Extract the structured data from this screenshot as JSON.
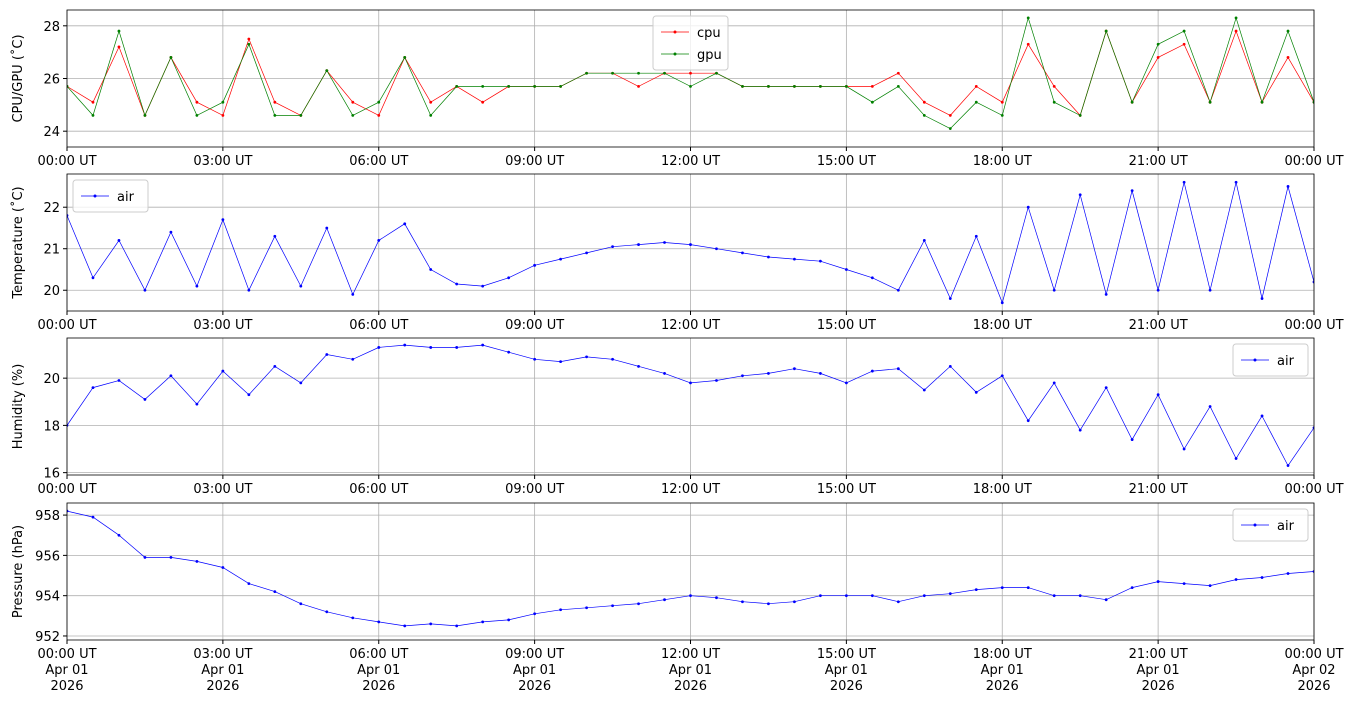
{
  "chart_data": [
    {
      "type": "line",
      "ylabel": "CPU/GPU (˚C)",
      "legend": "upper center",
      "grid": true,
      "x": [
        0,
        0.5,
        1,
        1.5,
        2,
        2.5,
        3,
        3.5,
        4,
        4.5,
        5,
        5.5,
        6,
        6.5,
        7,
        7.5,
        8,
        8.5,
        9,
        9.5,
        10,
        10.5,
        11,
        11.5,
        12,
        12.5,
        13,
        13.5,
        14,
        14.5,
        15,
        15.5,
        16,
        16.5,
        17,
        17.5,
        18,
        18.5,
        19,
        19.5,
        20,
        20.5,
        21,
        21.5,
        22,
        22.5,
        23,
        23.5,
        24
      ],
      "series": [
        {
          "name": "cpu",
          "color": "#ff0000",
          "values": [
            25.7,
            25.1,
            27.2,
            24.6,
            26.8,
            25.1,
            24.6,
            27.5,
            25.1,
            24.6,
            26.3,
            25.1,
            24.6,
            26.8,
            25.1,
            25.7,
            25.1,
            25.7,
            25.7,
            25.7,
            26.2,
            26.2,
            25.7,
            26.2,
            26.2,
            26.2,
            25.7,
            25.7,
            25.7,
            25.7,
            25.7,
            25.7,
            26.2,
            25.1,
            24.6,
            25.7,
            25.1,
            27.3,
            25.7,
            24.6,
            27.8,
            25.1,
            26.8,
            27.3,
            25.1,
            27.8,
            25.1,
            26.8,
            25.1
          ]
        },
        {
          "name": "gpu",
          "color": "#008000",
          "values": [
            25.7,
            24.6,
            27.8,
            24.6,
            26.8,
            24.6,
            25.1,
            27.3,
            24.6,
            24.6,
            26.3,
            24.6,
            25.1,
            26.8,
            24.6,
            25.7,
            25.7,
            25.7,
            25.7,
            25.7,
            26.2,
            26.2,
            26.2,
            26.2,
            25.7,
            26.2,
            25.7,
            25.7,
            25.7,
            25.7,
            25.7,
            25.1,
            25.7,
            24.6,
            24.1,
            25.1,
            24.6,
            28.3,
            25.1,
            24.6,
            27.8,
            25.1,
            27.3,
            27.8,
            25.1,
            28.3,
            25.1,
            27.8,
            25.1
          ]
        }
      ],
      "xlim": [
        0,
        24
      ],
      "ylim": [
        23.4,
        28.6
      ],
      "yticks": [
        24,
        26,
        28
      ],
      "xticks": [
        {
          "value": 0,
          "label": "00:00 UT"
        },
        {
          "value": 3,
          "label": "03:00 UT"
        },
        {
          "value": 6,
          "label": "06:00 UT"
        },
        {
          "value": 9,
          "label": "09:00 UT"
        },
        {
          "value": 12,
          "label": "12:00 UT"
        },
        {
          "value": 15,
          "label": "15:00 UT"
        },
        {
          "value": 18,
          "label": "18:00 UT"
        },
        {
          "value": 21,
          "label": "21:00 UT"
        },
        {
          "value": 24,
          "label": "00:00 UT"
        }
      ]
    },
    {
      "type": "line",
      "ylabel": "Temperature (˚C)",
      "legend": "upper left",
      "grid": true,
      "x": [
        0,
        0.5,
        1,
        1.5,
        2,
        2.5,
        3,
        3.5,
        4,
        4.5,
        5,
        5.5,
        6,
        6.5,
        7,
        7.5,
        8,
        8.5,
        9,
        9.5,
        10,
        10.5,
        11,
        11.5,
        12,
        12.5,
        13,
        13.5,
        14,
        14.5,
        15,
        15.5,
        16,
        16.5,
        17,
        17.5,
        18,
        18.5,
        19,
        19.5,
        20,
        20.5,
        21,
        21.5,
        22,
        22.5,
        23,
        23.5,
        24
      ],
      "series": [
        {
          "name": "air",
          "color": "#0000ff",
          "values": [
            21.8,
            20.3,
            21.2,
            20.0,
            21.4,
            20.1,
            21.7,
            20.0,
            21.3,
            20.1,
            21.5,
            19.9,
            21.2,
            21.6,
            20.5,
            20.15,
            20.1,
            20.3,
            20.6,
            20.75,
            20.9,
            21.05,
            21.1,
            21.15,
            21.1,
            21.0,
            20.9,
            20.8,
            20.75,
            20.7,
            20.5,
            20.3,
            20.0,
            21.2,
            19.8,
            21.3,
            19.7,
            22.0,
            20.0,
            22.3,
            19.9,
            22.4,
            20.0,
            22.6,
            20.0,
            22.6,
            19.8,
            22.5,
            20.2
          ]
        }
      ],
      "xlim": [
        0,
        24
      ],
      "ylim": [
        19.5,
        22.8
      ],
      "yticks": [
        20,
        21,
        22
      ],
      "xticks": [
        {
          "value": 0,
          "label": "00:00 UT"
        },
        {
          "value": 3,
          "label": "03:00 UT"
        },
        {
          "value": 6,
          "label": "06:00 UT"
        },
        {
          "value": 9,
          "label": "09:00 UT"
        },
        {
          "value": 12,
          "label": "12:00 UT"
        },
        {
          "value": 15,
          "label": "15:00 UT"
        },
        {
          "value": 18,
          "label": "18:00 UT"
        },
        {
          "value": 21,
          "label": "21:00 UT"
        },
        {
          "value": 24,
          "label": "00:00 UT"
        }
      ]
    },
    {
      "type": "line",
      "ylabel": "Humidity (%)",
      "legend": "upper right",
      "grid": true,
      "x": [
        0,
        0.5,
        1,
        1.5,
        2,
        2.5,
        3,
        3.5,
        4,
        4.5,
        5,
        5.5,
        6,
        6.5,
        7,
        7.5,
        8,
        8.5,
        9,
        9.5,
        10,
        10.5,
        11,
        11.5,
        12,
        12.5,
        13,
        13.5,
        14,
        14.5,
        15,
        15.5,
        16,
        16.5,
        17,
        17.5,
        18,
        18.5,
        19,
        19.5,
        20,
        20.5,
        21,
        21.5,
        22,
        22.5,
        23,
        23.5,
        24
      ],
      "series": [
        {
          "name": "air",
          "color": "#0000ff",
          "values": [
            18.0,
            19.6,
            19.9,
            19.1,
            20.1,
            18.9,
            20.3,
            19.3,
            20.5,
            19.8,
            21.0,
            20.8,
            21.3,
            21.4,
            21.3,
            21.3,
            21.4,
            21.1,
            20.8,
            20.7,
            20.9,
            20.8,
            20.5,
            20.2,
            19.8,
            19.9,
            20.1,
            20.2,
            20.4,
            20.2,
            19.8,
            20.3,
            20.4,
            19.5,
            20.5,
            19.4,
            20.1,
            18.2,
            19.8,
            17.8,
            19.6,
            17.4,
            19.3,
            17.0,
            18.8,
            16.6,
            18.4,
            16.3,
            17.9
          ]
        }
      ],
      "xlim": [
        0,
        24
      ],
      "ylim": [
        15.9,
        21.7
      ],
      "yticks": [
        16,
        18,
        20
      ],
      "xticks": [
        {
          "value": 0,
          "label": "00:00 UT"
        },
        {
          "value": 3,
          "label": "03:00 UT"
        },
        {
          "value": 6,
          "label": "06:00 UT"
        },
        {
          "value": 9,
          "label": "09:00 UT"
        },
        {
          "value": 12,
          "label": "12:00 UT"
        },
        {
          "value": 15,
          "label": "15:00 UT"
        },
        {
          "value": 18,
          "label": "18:00 UT"
        },
        {
          "value": 21,
          "label": "21:00 UT"
        },
        {
          "value": 24,
          "label": "00:00 UT"
        }
      ]
    },
    {
      "type": "line",
      "ylabel": "Pressure (hPa)",
      "legend": "upper right",
      "grid": true,
      "x": [
        0,
        0.5,
        1,
        1.5,
        2,
        2.5,
        3,
        3.5,
        4,
        4.5,
        5,
        5.5,
        6,
        6.5,
        7,
        7.5,
        8,
        8.5,
        9,
        9.5,
        10,
        10.5,
        11,
        11.5,
        12,
        12.5,
        13,
        13.5,
        14,
        14.5,
        15,
        15.5,
        16,
        16.5,
        17,
        17.5,
        18,
        18.5,
        19,
        19.5,
        20,
        20.5,
        21,
        21.5,
        22,
        22.5,
        23,
        23.5,
        24
      ],
      "series": [
        {
          "name": "air",
          "color": "#0000ff",
          "values": [
            958.2,
            957.9,
            957.0,
            955.9,
            955.9,
            955.7,
            955.4,
            954.6,
            954.2,
            953.6,
            953.2,
            952.9,
            952.7,
            952.5,
            952.6,
            952.5,
            952.7,
            952.8,
            953.1,
            953.3,
            953.4,
            953.5,
            953.6,
            953.8,
            954.0,
            953.9,
            953.7,
            953.6,
            953.7,
            954.0,
            954.0,
            954.0,
            953.7,
            954.0,
            954.1,
            954.3,
            954.4,
            954.4,
            954.0,
            954.0,
            953.8,
            954.4,
            954.7,
            954.6,
            954.5,
            954.8,
            954.9,
            955.1,
            955.2
          ]
        }
      ],
      "xlim": [
        0,
        24
      ],
      "ylim": [
        951.8,
        958.6
      ],
      "yticks": [
        952,
        954,
        956,
        958
      ],
      "xticks": [
        {
          "value": 0,
          "label": "00:00 UT\nApr 01\n2026"
        },
        {
          "value": 3,
          "label": "03:00 UT\nApr 01\n2026"
        },
        {
          "value": 6,
          "label": "06:00 UT\nApr 01\n2026"
        },
        {
          "value": 9,
          "label": "09:00 UT\nApr 01\n2026"
        },
        {
          "value": 12,
          "label": "12:00 UT\nApr 01\n2026"
        },
        {
          "value": 15,
          "label": "15:00 UT\nApr 01\n2026"
        },
        {
          "value": 18,
          "label": "18:00 UT\nApr 01\n2026"
        },
        {
          "value": 21,
          "label": "21:00 UT\nApr 01\n2026"
        },
        {
          "value": 24,
          "label": "00:00 UT\nApr 02\n2026"
        }
      ]
    }
  ]
}
